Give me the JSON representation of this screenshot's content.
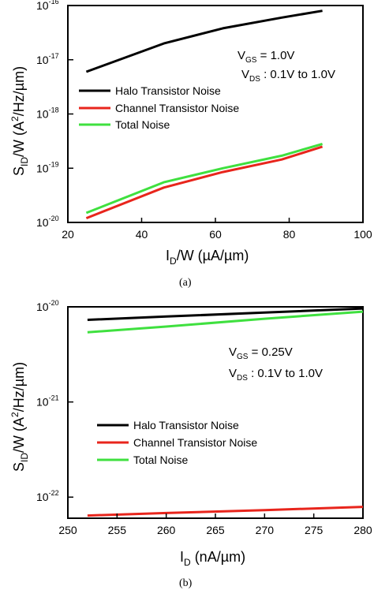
{
  "chart_data": [
    {
      "type": "line",
      "caption": "(a)",
      "xlabel": "I_D/W (µA/µm)",
      "ylabel": "S_ID/W (A²/Hz/µm)",
      "xlim": [
        20,
        100
      ],
      "ylim": [
        1e-20,
        1e-16
      ],
      "yscale": "log",
      "x_ticks": [
        "20",
        "40",
        "60",
        "80",
        "100"
      ],
      "y_ticks": [
        {
          "base": "10",
          "exp": "-20"
        },
        {
          "base": "10",
          "exp": "-19"
        },
        {
          "base": "10",
          "exp": "-18"
        },
        {
          "base": "10",
          "exp": "-17"
        },
        {
          "base": "10",
          "exp": "-16"
        }
      ],
      "annotation": [
        {
          "main": "V",
          "sub": "GS",
          "rest": " = 1.0V"
        },
        {
          "main": "V",
          "sub": "DS",
          "rest": " :  0.1V to 1.0V"
        }
      ],
      "legend_position": "middle-left",
      "series": [
        {
          "name": "Halo Transistor Noise",
          "color": "#000000",
          "x": [
            25,
            46,
            62,
            78,
            89
          ],
          "y": [
            6e-18,
            2e-17,
            3.8e-17,
            6e-17,
            8e-17
          ]
        },
        {
          "name": "Channel Transistor Noise",
          "color": "#e8251c",
          "x": [
            25,
            46,
            62,
            78,
            89
          ],
          "y": [
            1.2e-20,
            4.4e-20,
            8.5e-20,
            1.45e-19,
            2.5e-19
          ]
        },
        {
          "name": "Total Noise",
          "color": "#3fe03f",
          "x": [
            25,
            46,
            62,
            78,
            89
          ],
          "y": [
            1.5e-20,
            5.5e-20,
            1e-19,
            1.7e-19,
            2.8e-19
          ]
        }
      ]
    },
    {
      "type": "line",
      "caption": "(b)",
      "xlabel": "I_D (nA/µm)",
      "ylabel": "S_ID/W (A²/Hz/µm)",
      "xlim": [
        250,
        280
      ],
      "ylim": [
        6e-23,
        1e-20
      ],
      "yscale": "log",
      "x_ticks": [
        "250",
        "255",
        "260",
        "265",
        "270",
        "275",
        "280"
      ],
      "y_ticks": [
        {
          "base": "10",
          "exp": "-22"
        },
        {
          "base": "10",
          "exp": "-21"
        },
        {
          "base": "10",
          "exp": "-20"
        }
      ],
      "annotation": [
        {
          "main": "V",
          "sub": "GS",
          "rest": " = 0.25V"
        },
        {
          "main": "V",
          "sub": "DS",
          "rest": " :  0.1V to 1.0V"
        }
      ],
      "legend_position": "lower-middle",
      "series": [
        {
          "name": "Halo Transistor Noise",
          "color": "#000000",
          "x": [
            252,
            260,
            270,
            280
          ],
          "y": [
            7.3e-21,
            7.9e-21,
            8.7e-21,
            9.6e-21
          ]
        },
        {
          "name": "Channel Transistor Noise",
          "color": "#e8251c",
          "x": [
            252,
            260,
            270,
            280
          ],
          "y": [
            6.4e-23,
            6.8e-23,
            7.3e-23,
            7.9e-23
          ]
        },
        {
          "name": "Total Noise",
          "color": "#3fe03f",
          "x": [
            252,
            260,
            270,
            280
          ],
          "y": [
            5.4e-21,
            6.2e-21,
            7.5e-21,
            8.9e-21
          ]
        }
      ]
    }
  ]
}
